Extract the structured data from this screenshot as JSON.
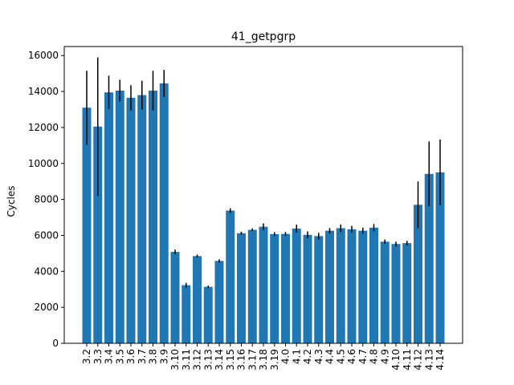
{
  "chart_data": {
    "type": "bar",
    "title": "41_getpgrp",
    "xlabel": "",
    "ylabel": "Cycles",
    "ylim": [
      0,
      16500
    ],
    "yticks": [
      0,
      2000,
      4000,
      6000,
      8000,
      10000,
      12000,
      14000,
      16000
    ],
    "grid": false,
    "bar_color": "#1f77b4",
    "error_color": "#000000",
    "categories": [
      "3.2",
      "3.3",
      "3.4",
      "3.5",
      "3.6",
      "3.7",
      "3.8",
      "3.9",
      "3.10",
      "3.11",
      "3.12",
      "3.13",
      "3.14",
      "3.15",
      "3.16",
      "3.17",
      "3.18",
      "3.19",
      "4.0",
      "4.1",
      "4.2",
      "4.3",
      "4.4",
      "4.5",
      "4.6",
      "4.7",
      "4.8",
      "4.9",
      "4.10",
      "4.11",
      "4.12",
      "4.13",
      "4.14"
    ],
    "values": [
      13100,
      12050,
      13950,
      14050,
      13650,
      13800,
      14050,
      14450,
      5080,
      3230,
      4850,
      3140,
      4580,
      7380,
      6120,
      6310,
      6480,
      6070,
      6080,
      6380,
      6030,
      5960,
      6260,
      6400,
      6340,
      6260,
      6430,
      5650,
      5520,
      5570,
      7700,
      9420,
      9500
    ],
    "errors": [
      2050,
      3850,
      930,
      600,
      700,
      800,
      1100,
      750,
      130,
      130,
      80,
      70,
      90,
      130,
      80,
      80,
      190,
      110,
      110,
      220,
      190,
      180,
      150,
      210,
      190,
      170,
      200,
      120,
      130,
      130,
      1300,
      1800,
      1830
    ]
  }
}
